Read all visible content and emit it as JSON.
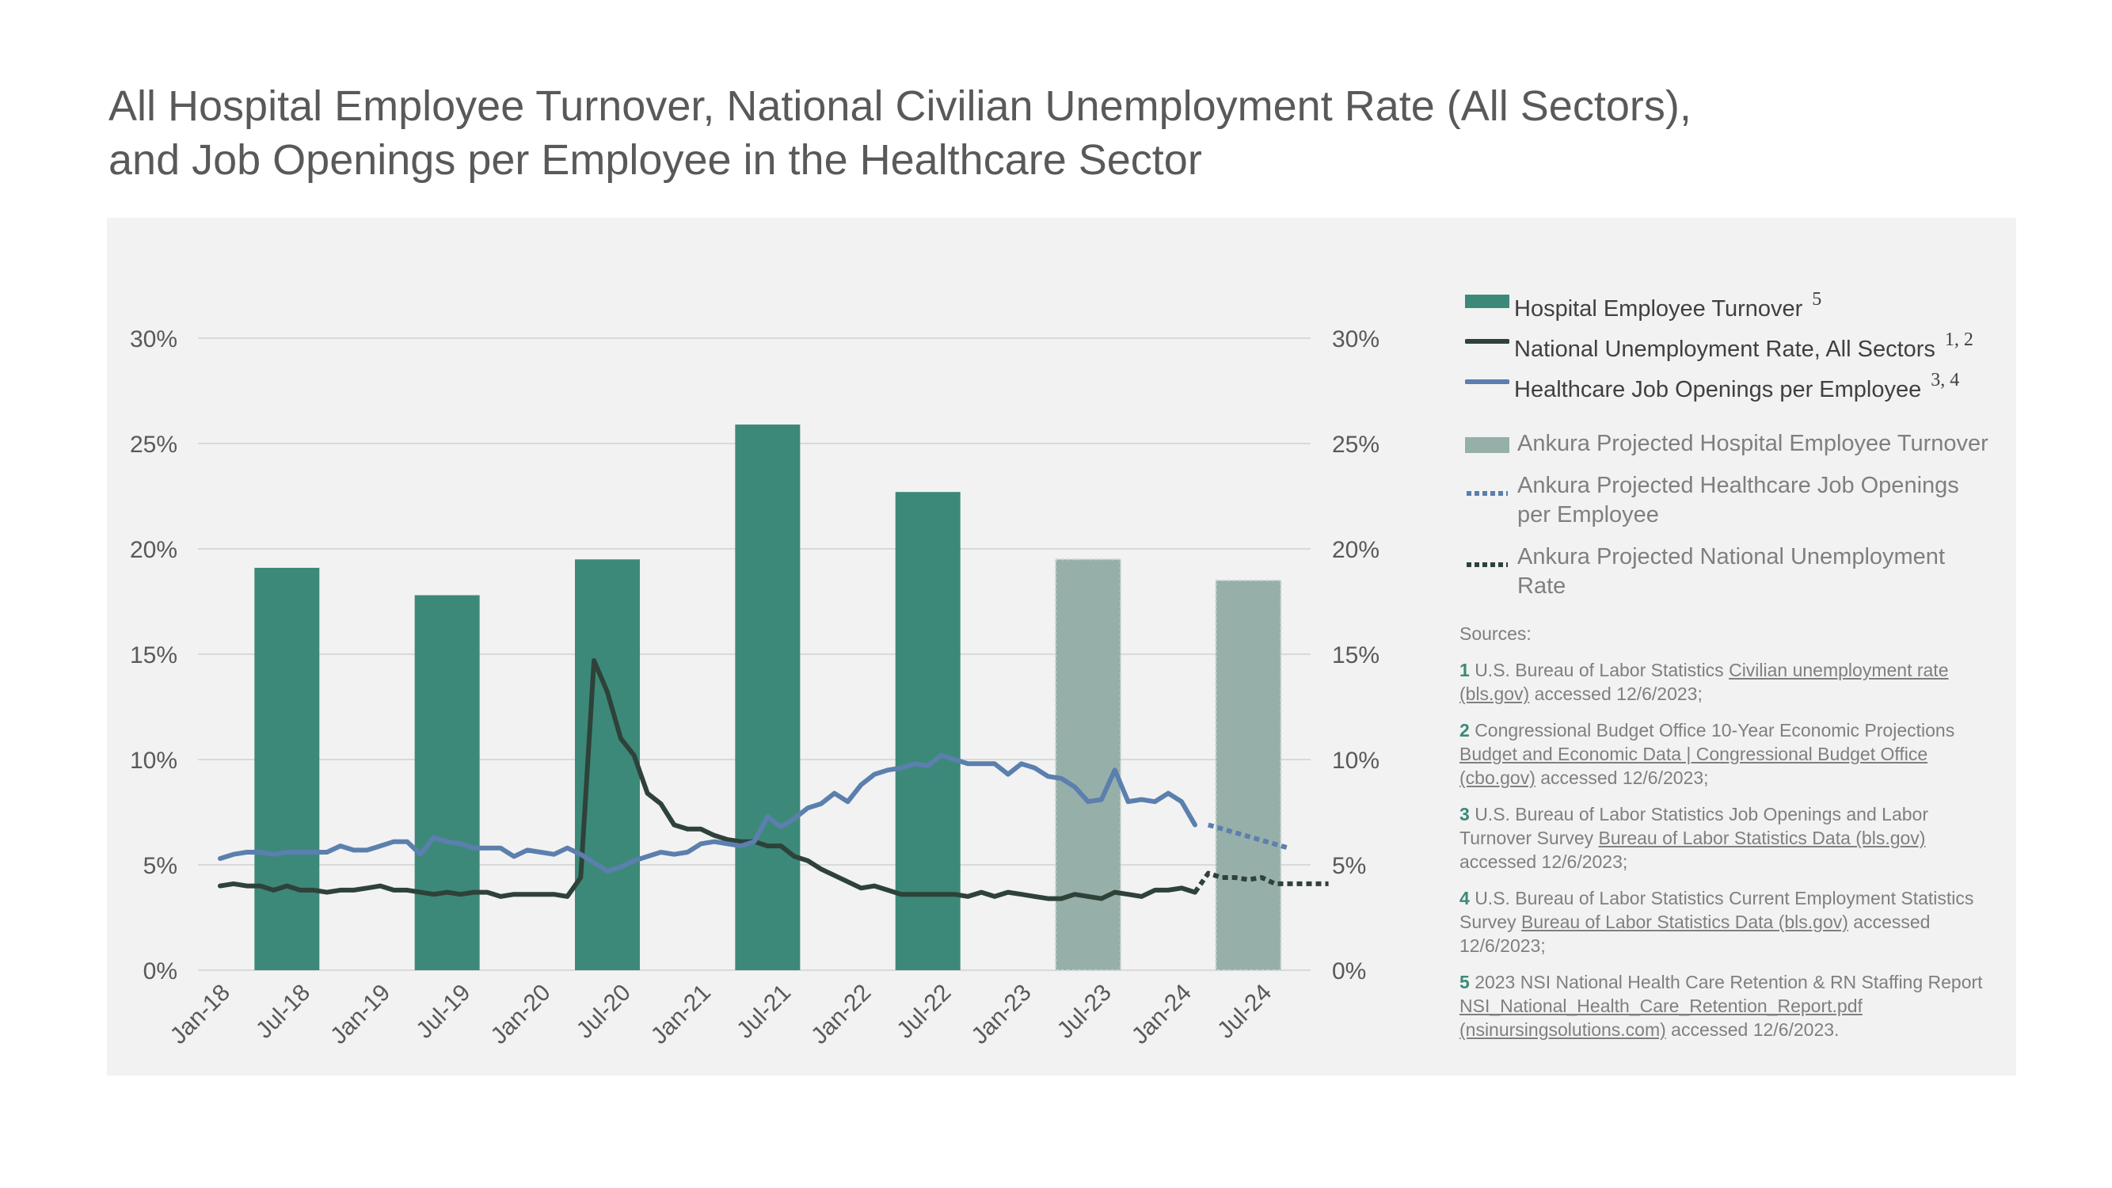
{
  "title_lines": [
    "All Hospital Employee Turnover, National Civilian Unemployment Rate (All Sectors),",
    "and Job Openings per Employee in the Healthcare Sector"
  ],
  "colors": {
    "turnover": "#3c8979",
    "turnover_projected": "#97afa9",
    "unemployment": "#2e4239",
    "openings": "#5b7fae",
    "background": "#f2f2f2",
    "grid": "#d9d9d9"
  },
  "legend": [
    {
      "label": "Hospital Employee Turnover",
      "sup": "5",
      "swatch": "bar",
      "color": "#3c8979"
    },
    {
      "label": "National Unemployment Rate, All Sectors",
      "sup": "1, 2",
      "swatch": "line",
      "color": "#2e4239"
    },
    {
      "label": "Healthcare Job Openings per Employee",
      "sup": "3, 4",
      "swatch": "line",
      "color": "#5b7fae"
    },
    {
      "label": "Ankura Projected Hospital Employee Turnover",
      "sup": "",
      "swatch": "bar",
      "color": "#97afa9"
    },
    {
      "label": "Ankura Projected Healthcare Job Openings per Employee",
      "label_lines": [
        "Ankura Projected Healthcare Job Openings",
        "per Employee"
      ],
      "sup": "",
      "swatch": "dotted",
      "color": "#5b7fae"
    },
    {
      "label": "Ankura Projected National Unemployment Rate",
      "label_lines": [
        "Ankura Projected National Unemployment",
        "Rate"
      ],
      "sup": "",
      "swatch": "dotted",
      "color": "#2e4239"
    }
  ],
  "sources": {
    "heading": "Sources:",
    "items": [
      {
        "num": "1",
        "text": "U.S. Bureau of Labor Statistics ",
        "link": "Civilian unemployment rate (bls.gov)",
        "after": " accessed 12/6/2023;"
      },
      {
        "num": "2",
        "text": "Congressional Budget Office 10-Year Economic Projections ",
        "link": "Budget and Economic Data | Congressional Budget Office (cbo.gov)",
        "after": " accessed 12/6/2023;"
      },
      {
        "num": "3",
        "text": "U.S. Bureau of Labor Statistics Job Openings and Labor Turnover Survey ",
        "link": "Bureau of Labor Statistics Data (bls.gov)",
        "after": " accessed 12/6/2023;"
      },
      {
        "num": "4",
        "text": "U.S. Bureau of Labor Statistics Current Employment Statistics Survey ",
        "link": "Bureau of Labor Statistics Data (bls.gov)",
        "after": " accessed 12/6/2023;"
      },
      {
        "num": "5",
        "text": "2023 NSI National Health Care Retention & RN Staffing Report ",
        "link": "NSI_National_Health_Care_Retention_Report.pdf (nsinursingsolutions.com)",
        "after": " accessed 12/6/2023."
      }
    ]
  },
  "chart_data": {
    "type": "bar",
    "x_tick_labels": [
      "Jan-18",
      "Jul-18",
      "Jan-19",
      "Jul-19",
      "Jan-20",
      "Jul-20",
      "Jan-21",
      "Jul-21",
      "Jan-22",
      "Jul-22",
      "Jan-23",
      "Jul-23",
      "Jan-24",
      "Jul-24"
    ],
    "ylim": [
      0,
      30
    ],
    "y_tick_labels": [
      "0%",
      "5%",
      "10%",
      "15%",
      "20%",
      "25%",
      "30%"
    ],
    "y_ticks": [
      0,
      5,
      10,
      15,
      20,
      25,
      30
    ],
    "secondary_y_tick_labels": [
      "0%",
      "5%",
      "10%",
      "15%",
      "20%",
      "25%",
      "30%"
    ],
    "grid": true,
    "legend_position": "right",
    "x_start": "Jan-18",
    "x_end": "Sep-24",
    "bars": [
      {
        "month": "Jun-18",
        "value": 19.1,
        "projected": false
      },
      {
        "month": "Jun-19",
        "value": 17.8,
        "projected": false
      },
      {
        "month": "Jun-20",
        "value": 19.5,
        "projected": false
      },
      {
        "month": "Jun-21",
        "value": 25.9,
        "projected": false
      },
      {
        "month": "Jun-22",
        "value": 22.7,
        "projected": false
      },
      {
        "month": "Jun-23",
        "value": 19.5,
        "projected": true
      },
      {
        "month": "Jun-24",
        "value": 18.5,
        "projected": true
      }
    ],
    "series": [
      {
        "name": "National Unemployment Rate, All Sectors",
        "start": "Jan-18",
        "values": [
          4.0,
          4.1,
          4.0,
          4.0,
          3.8,
          4.0,
          3.8,
          3.8,
          3.7,
          3.8,
          3.8,
          3.9,
          4.0,
          3.8,
          3.8,
          3.7,
          3.6,
          3.7,
          3.6,
          3.7,
          3.7,
          3.5,
          3.6,
          3.6,
          3.6,
          3.6,
          3.5,
          4.4,
          14.7,
          13.2,
          11.0,
          10.2,
          8.4,
          7.9,
          6.9,
          6.7,
          6.7,
          6.4,
          6.2,
          6.1,
          6.1,
          5.9,
          5.9,
          5.4,
          5.2,
          4.8,
          4.5,
          4.2,
          3.9,
          4.0,
          3.8,
          3.6,
          3.6,
          3.6,
          3.6,
          3.6,
          3.5,
          3.7,
          3.5,
          3.7,
          3.6,
          3.5,
          3.4,
          3.4,
          3.6,
          3.5,
          3.4,
          3.7,
          3.6,
          3.5,
          3.8,
          3.8,
          3.9,
          3.7
        ]
      },
      {
        "name": "Healthcare Job Openings per Employee",
        "start": "Jan-18",
        "values": [
          5.3,
          5.5,
          5.6,
          5.6,
          5.5,
          5.6,
          5.6,
          5.6,
          5.6,
          5.9,
          5.7,
          5.7,
          5.9,
          6.1,
          6.1,
          5.5,
          6.3,
          6.1,
          6.0,
          5.8,
          5.8,
          5.8,
          5.4,
          5.7,
          5.6,
          5.5,
          5.8,
          5.5,
          5.1,
          4.7,
          4.9,
          5.2,
          5.4,
          5.6,
          5.5,
          5.6,
          6.0,
          6.1,
          6.0,
          5.9,
          6.1,
          7.3,
          6.8,
          7.2,
          7.7,
          7.9,
          8.4,
          8.0,
          8.8,
          9.3,
          9.5,
          9.6,
          9.8,
          9.7,
          10.2,
          10.0,
          9.8,
          9.8,
          9.8,
          9.3,
          9.8,
          9.6,
          9.2,
          9.1,
          8.7,
          8.0,
          8.1,
          9.5,
          8.0,
          8.1,
          8.0,
          8.4,
          8.0,
          6.9
        ]
      },
      {
        "name": "Ankura Projected Healthcare Job Openings per Employee",
        "start": "Mar-24",
        "values": [
          6.9,
          5.8
        ],
        "end": "Sep-24",
        "projected": true
      },
      {
        "name": "Ankura Projected National Unemployment Rate",
        "start": "Feb-24",
        "values": [
          3.7,
          4.6,
          4.4,
          4.4,
          4.3,
          4.4,
          4.1,
          4.1,
          4.1,
          4.1,
          4.1
        ],
        "projected": true
      }
    ]
  }
}
